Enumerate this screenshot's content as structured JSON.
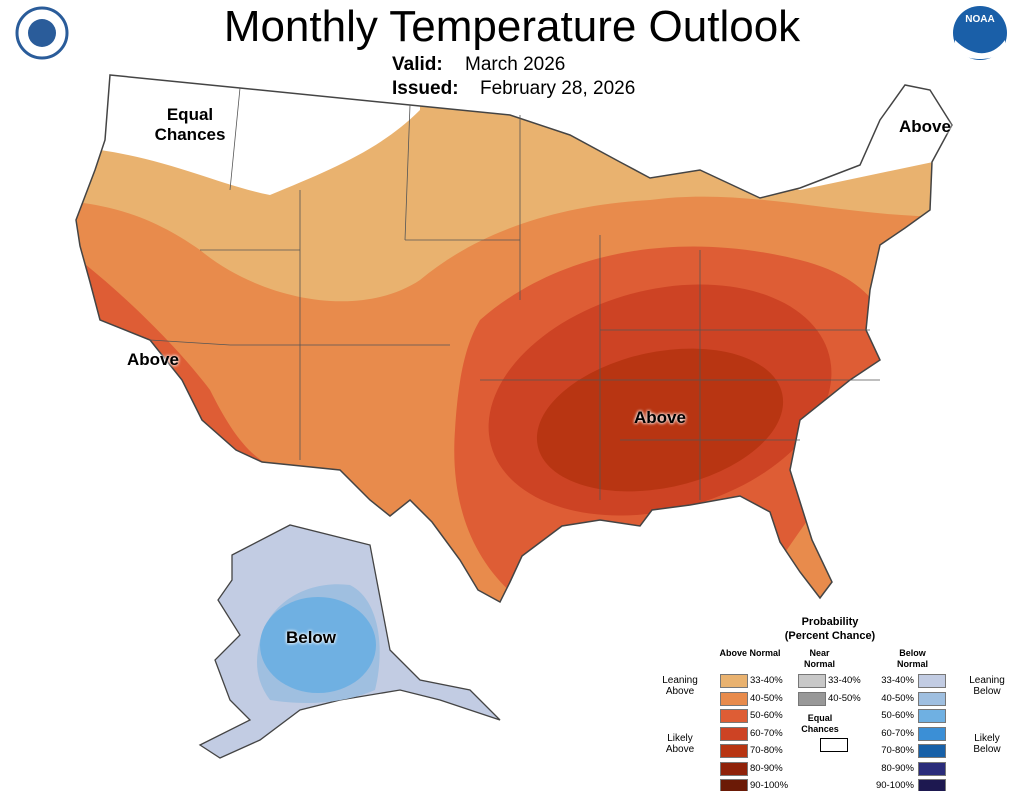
{
  "header": {
    "title": "Monthly Temperature Outlook",
    "valid_label": "Valid:",
    "valid": "March 2026",
    "issued_label": "Issued:",
    "issued": "February 28, 2026"
  },
  "noaa_logo": "NOAA",
  "map_labels": {
    "equal_chances": "Equal Chances",
    "above_ne": "Above",
    "above_ca": "Above",
    "above_se": "Above",
    "below_ak": "Below"
  },
  "legend": {
    "title": "Probability",
    "subtitle": "(Percent Chance)",
    "above": {
      "heading": "Above Normal",
      "items": [
        {
          "label": "33-40%",
          "color": "#e9b26f"
        },
        {
          "label": "40-50%",
          "color": "#e88b4c"
        },
        {
          "label": "50-60%",
          "color": "#de5d35"
        },
        {
          "label": "60-70%",
          "color": "#cd4324"
        },
        {
          "label": "70-80%",
          "color": "#b83512"
        },
        {
          "label": "80-90%",
          "color": "#8f220a"
        },
        {
          "label": "90-100%",
          "color": "#6b1a06"
        }
      ]
    },
    "near": {
      "heading": "Near Normal",
      "items": [
        {
          "label": "33-40%",
          "color": "#c8c8c8"
        },
        {
          "label": "40-50%",
          "color": "#989898"
        }
      ]
    },
    "below": {
      "heading": "Below Normal",
      "items": [
        {
          "label": "33-40%",
          "color": "#c2cce3"
        },
        {
          "label": "40-50%",
          "color": "#9fbfe0"
        },
        {
          "label": "50-60%",
          "color": "#6fb0e2"
        },
        {
          "label": "60-70%",
          "color": "#3b8fd6"
        },
        {
          "label": "70-80%",
          "color": "#1760a8"
        },
        {
          "label": "80-90%",
          "color": "#2a2c7a"
        },
        {
          "label": "90-100%",
          "color": "#1d1850"
        }
      ]
    },
    "equal_chances": "Equal Chances",
    "leaning_above": "Leaning Above",
    "likely_above": "Likely Above",
    "leaning_below": "Leaning Below",
    "likely_below": "Likely Below"
  }
}
